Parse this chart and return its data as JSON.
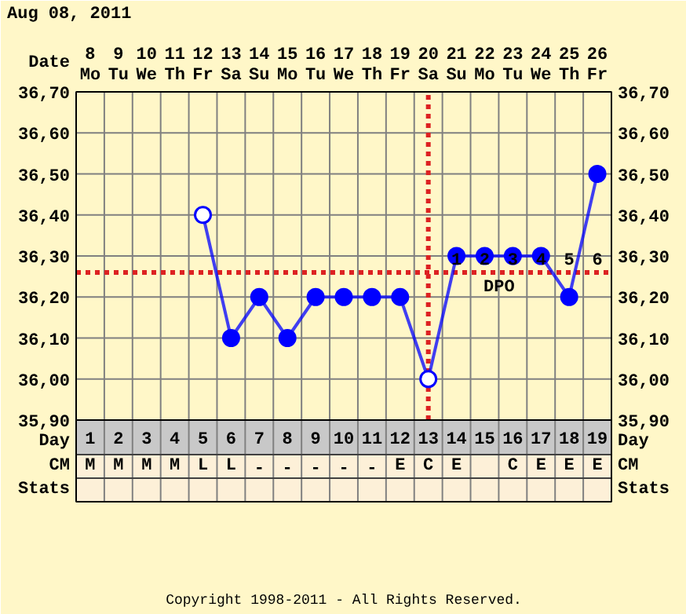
{
  "chart_data": {
    "type": "line",
    "title": "Aug 08, 2011",
    "x": [
      5,
      6,
      7,
      8,
      9,
      10,
      11,
      12,
      13,
      14,
      15,
      16,
      17,
      18,
      19
    ],
    "xlim": [
      0.5,
      19.5
    ],
    "xlabel": "Day",
    "xticks": [
      {
        "value": 1,
        "label": "1\nM"
      },
      {
        "value": 2,
        "label": "2\nM"
      },
      {
        "value": 3,
        "label": "3\nM"
      },
      {
        "value": 4,
        "label": "4\nM"
      },
      {
        "value": 5,
        "label": "5\nL"
      },
      {
        "value": 6,
        "label": "6\nL"
      },
      {
        "value": 7,
        "label": "7\n-"
      },
      {
        "value": 8,
        "label": "8\n-"
      },
      {
        "value": 9,
        "label": "9\n-"
      },
      {
        "value": 10,
        "label": "10\n-"
      },
      {
        "value": 11,
        "label": "11\n-"
      },
      {
        "value": 12,
        "label": "12\nE"
      },
      {
        "value": 13,
        "label": "13\nC"
      },
      {
        "value": 14,
        "label": "14\nE"
      },
      {
        "value": 15,
        "label": "15"
      },
      {
        "value": 16,
        "label": "16\nC"
      },
      {
        "value": 17,
        "label": "17\nE"
      },
      {
        "value": 18,
        "label": "18\nE"
      },
      {
        "value": 19,
        "label": "19\nE"
      }
    ],
    "x2lim": [
      7.5,
      26.5
    ],
    "x2label": "Date",
    "x2ticks": [
      {
        "value": 8,
        "label": "8\nMo"
      },
      {
        "value": 9,
        "label": "9\nTu"
      },
      {
        "value": 10,
        "label": "10\nWe"
      },
      {
        "value": 11,
        "label": "11\nTh"
      },
      {
        "value": 12,
        "label": "12\nFr"
      },
      {
        "value": 13,
        "label": "13\nSa"
      },
      {
        "value": 14,
        "label": "14\nSu"
      },
      {
        "value": 15,
        "label": "15\nMo"
      },
      {
        "value": 16,
        "label": "16\nTu"
      },
      {
        "value": 17,
        "label": "17\nWe"
      },
      {
        "value": 18,
        "label": "18\nTh"
      },
      {
        "value": 19,
        "label": "19\nFr"
      },
      {
        "value": 20,
        "label": "20\nSa"
      },
      {
        "value": 21,
        "label": "21\nSu"
      },
      {
        "value": 22,
        "label": "22\nMo"
      },
      {
        "value": 23,
        "label": "23\nTu"
      },
      {
        "value": 24,
        "label": "24\nWe"
      },
      {
        "value": 25,
        "label": "25\nTh"
      },
      {
        "value": 26,
        "label": "26\nFr"
      }
    ],
    "ylim": [
      35.9,
      36.7
    ],
    "yticks": [
      {
        "value": 35.9,
        "label": "35,90"
      },
      {
        "value": 36.0,
        "label": "36,00"
      },
      {
        "value": 36.1,
        "label": "36,10"
      },
      {
        "value": 36.2,
        "label": "36,20"
      },
      {
        "value": 36.3,
        "label": "36,30"
      },
      {
        "value": 36.4,
        "label": "36,40"
      },
      {
        "value": 36.5,
        "label": "36,50"
      },
      {
        "value": 36.6,
        "label": "36,60"
      },
      {
        "value": 36.7,
        "label": "36,70"
      }
    ],
    "y2lim": [
      35.9,
      36.7
    ],
    "y2ticks": [
      {
        "value": 35.9,
        "label": "35,90"
      },
      {
        "value": 36.0,
        "label": "36,00"
      },
      {
        "value": 36.1,
        "label": "36,10"
      },
      {
        "value": 36.2,
        "label": "36,20"
      },
      {
        "value": 36.3,
        "label": "36,30"
      },
      {
        "value": 36.4,
        "label": "36,40"
      },
      {
        "value": 36.5,
        "label": "36,50"
      },
      {
        "value": 36.6,
        "label": "36,60"
      },
      {
        "value": 36.7,
        "label": "36,70"
      }
    ],
    "series": [
      {
        "color": "#0000ff",
        "colors": [
          "#ffffff",
          "#0000ff",
          "#0000ff",
          "#0000ff",
          "#0000ff",
          "#0000ff",
          "#0000ff",
          "#0000ff",
          "#ffffff",
          "#0000ff",
          "#0000ff",
          "#0000ff",
          "#0000ff",
          "#0000ff",
          "#0000ff"
        ],
        "values": [
          36.4,
          36.1,
          36.2,
          36.1,
          36.2,
          36.2,
          36.2,
          36.2,
          36.0,
          36.3,
          36.3,
          36.3,
          36.3,
          36.2,
          36.5
        ]
      }
    ],
    "marker": "circle",
    "line_style": "solid",
    "grid": true,
    "ref_lines": [
      {
        "axis": "x",
        "value": 13,
        "color": "#dd2222",
        "line_style": "dotted"
      },
      {
        "axis": "y",
        "value": 36.26,
        "color": "#dd2222",
        "line_style": "dotted"
      }
    ],
    "annotations": [
      "1",
      "2",
      "3",
      "4",
      "5",
      "6",
      "DPO",
      "CM",
      "Stats",
      "Copyright 1998-2011 - All Rights Reserved."
    ]
  }
}
